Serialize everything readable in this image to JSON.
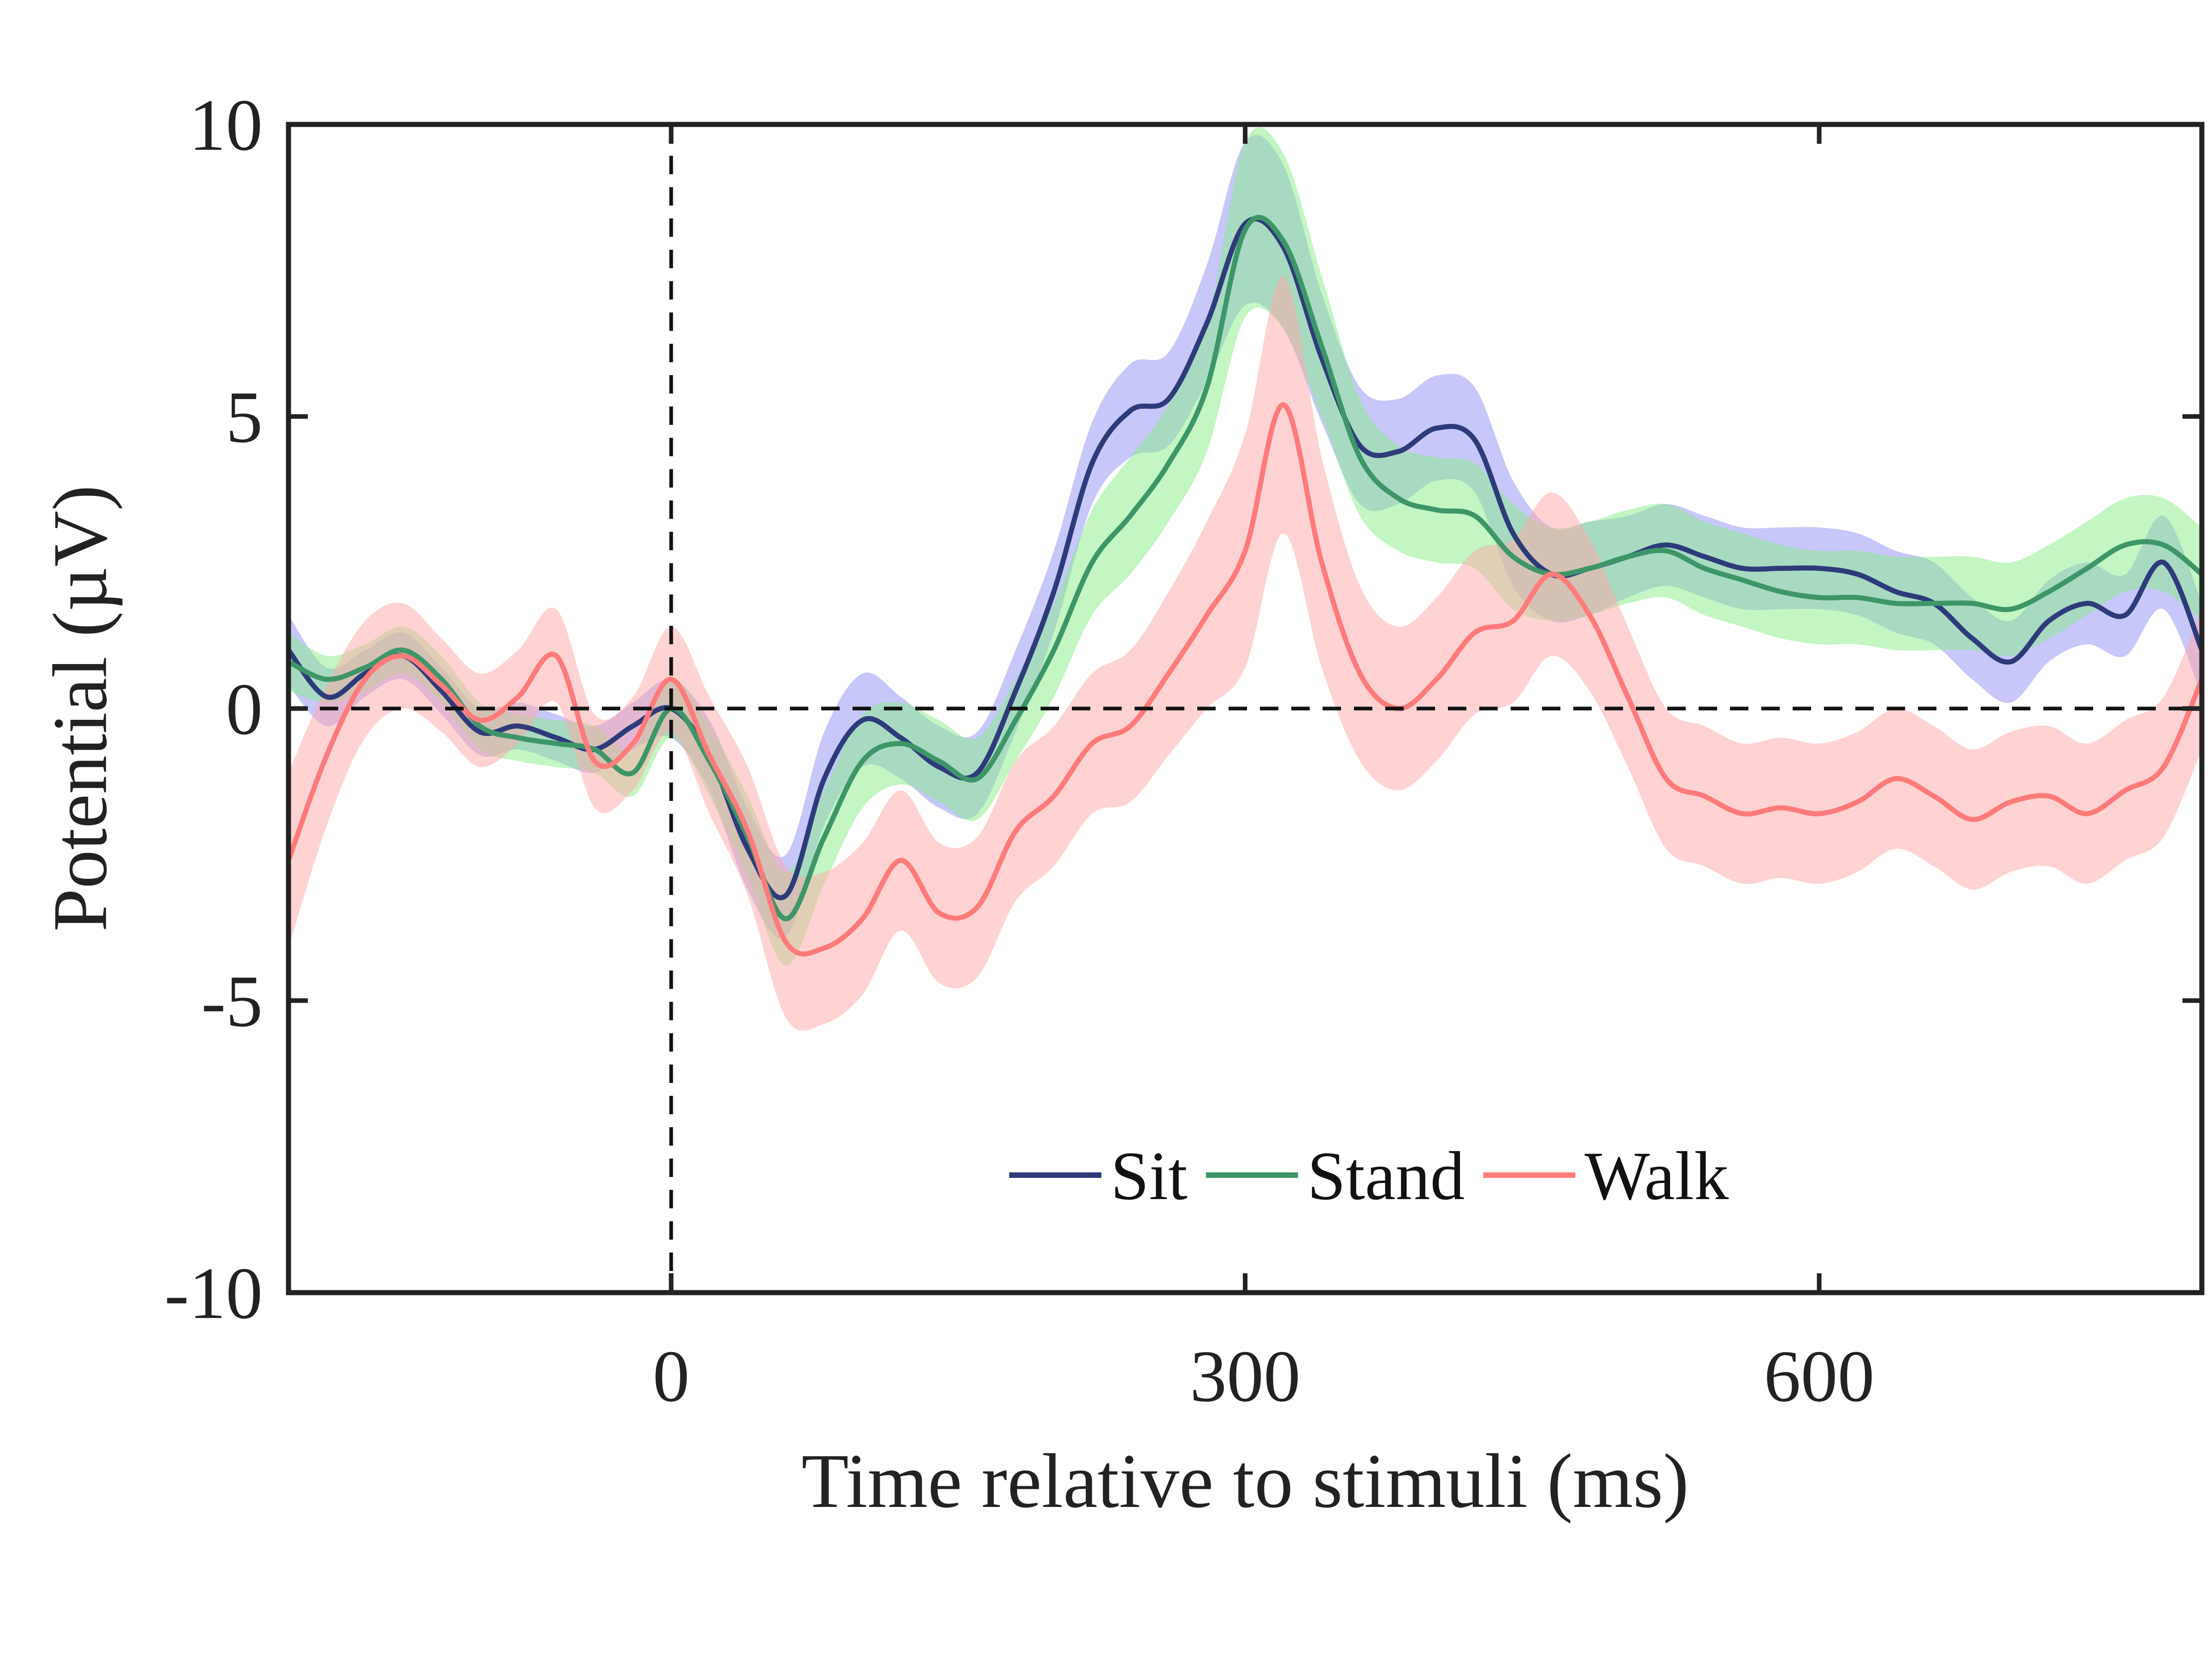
{
  "chart_data": {
    "type": "line",
    "xlabel": "Time relative to stimuli (ms)",
    "ylabel": "Potential (µV)",
    "xlim": [
      -200,
      800
    ],
    "ylim": [
      -10,
      10
    ],
    "xticks": [
      0,
      300,
      600
    ],
    "yticks": [
      -10,
      -5,
      0,
      5,
      10
    ],
    "reference_lines": {
      "x": 0,
      "y": 0
    },
    "legend_position": "bottom-right",
    "grid": false,
    "x": [
      -200,
      -180,
      -160,
      -140,
      -120,
      -100,
      -80,
      -60,
      -40,
      -20,
      0,
      20,
      40,
      60,
      80,
      100,
      120,
      140,
      160,
      180,
      200,
      220,
      240,
      260,
      280,
      300,
      320,
      340,
      360,
      380,
      400,
      420,
      440,
      460,
      480,
      500,
      520,
      540,
      560,
      580,
      600,
      620,
      640,
      660,
      680,
      700,
      720,
      740,
      760,
      780,
      800
    ],
    "series": [
      {
        "name": "Sit",
        "color": "#2e3b7a",
        "band_color": "#8f8ff5",
        "values": [
          1.0,
          0.2,
          0.6,
          0.9,
          0.3,
          -0.4,
          -0.3,
          -0.5,
          -0.7,
          -0.3,
          0.0,
          -0.8,
          -2.4,
          -3.2,
          -1.2,
          -0.2,
          -0.5,
          -1.0,
          -1.1,
          0.3,
          2.0,
          4.2,
          5.1,
          5.3,
          6.6,
          8.3,
          7.9,
          6.0,
          4.5,
          4.4,
          4.8,
          4.6,
          3.0,
          2.3,
          2.4,
          2.6,
          2.8,
          2.6,
          2.4,
          2.4,
          2.4,
          2.3,
          2.0,
          1.8,
          1.2,
          0.8,
          1.5,
          1.8,
          1.6,
          2.5,
          1.0
        ],
        "band": [
          0.6,
          0.5,
          0.4,
          0.4,
          0.4,
          0.4,
          0.4,
          0.4,
          0.4,
          0.4,
          0.5,
          0.6,
          0.7,
          0.7,
          0.8,
          0.8,
          0.7,
          0.7,
          0.7,
          0.7,
          0.7,
          0.7,
          0.8,
          0.8,
          1.0,
          1.4,
          1.4,
          1.1,
          1.0,
          0.9,
          0.9,
          0.9,
          0.9,
          0.8,
          0.8,
          0.7,
          0.7,
          0.7,
          0.7,
          0.7,
          0.7,
          0.7,
          0.7,
          0.7,
          0.7,
          0.7,
          0.7,
          0.7,
          0.7,
          0.8,
          0.8
        ]
      },
      {
        "name": "Stand",
        "color": "#3e9668",
        "band_color": "#88ee88",
        "values": [
          0.8,
          0.5,
          0.7,
          1.0,
          0.5,
          -0.3,
          -0.5,
          -0.6,
          -0.7,
          -1.1,
          0.0,
          -0.9,
          -2.2,
          -3.6,
          -2.2,
          -0.9,
          -0.6,
          -0.9,
          -1.2,
          -0.2,
          1.0,
          2.5,
          3.3,
          4.2,
          5.5,
          8.2,
          8.0,
          6.2,
          4.3,
          3.6,
          3.4,
          3.3,
          2.6,
          2.3,
          2.4,
          2.6,
          2.7,
          2.4,
          2.2,
          2.0,
          1.9,
          1.9,
          1.8,
          1.8,
          1.8,
          1.7,
          2.0,
          2.4,
          2.8,
          2.8,
          2.3
        ],
        "band": [
          0.5,
          0.4,
          0.4,
          0.4,
          0.4,
          0.4,
          0.4,
          0.4,
          0.4,
          0.4,
          0.5,
          0.6,
          0.7,
          0.8,
          0.8,
          0.8,
          0.7,
          0.7,
          0.7,
          0.7,
          0.8,
          0.9,
          1.0,
          1.0,
          1.1,
          1.5,
          1.5,
          1.2,
          1.0,
          0.9,
          0.9,
          0.9,
          0.9,
          0.8,
          0.8,
          0.8,
          0.8,
          0.8,
          0.8,
          0.8,
          0.8,
          0.8,
          0.8,
          0.8,
          0.8,
          0.8,
          0.8,
          0.8,
          0.8,
          0.8,
          0.8
        ]
      },
      {
        "name": "Walk",
        "color": "#ff7b7b",
        "band_color": "#ffa8a8",
        "values": [
          -2.6,
          -0.8,
          0.5,
          0.9,
          0.4,
          -0.2,
          0.2,
          0.9,
          -0.9,
          -0.6,
          0.5,
          -0.8,
          -2.1,
          -4.0,
          -4.1,
          -3.6,
          -2.6,
          -3.5,
          -3.4,
          -2.1,
          -1.5,
          -0.6,
          -0.3,
          0.6,
          1.6,
          2.7,
          5.2,
          2.5,
          0.6,
          0.0,
          0.5,
          1.3,
          1.5,
          2.3,
          1.6,
          0.2,
          -1.2,
          -1.5,
          -1.8,
          -1.7,
          -1.8,
          -1.6,
          -1.2,
          -1.5,
          -1.9,
          -1.6,
          -1.5,
          -1.8,
          -1.4,
          -1.0,
          0.5
        ],
        "band": [
          1.5,
          1.2,
          1.0,
          0.9,
          0.8,
          0.8,
          0.8,
          0.8,
          0.8,
          0.8,
          0.9,
          1.0,
          1.1,
          1.3,
          1.3,
          1.3,
          1.2,
          1.2,
          1.2,
          1.2,
          1.2,
          1.2,
          1.3,
          1.4,
          1.6,
          2.0,
          2.2,
          1.8,
          1.5,
          1.4,
          1.4,
          1.4,
          1.4,
          1.4,
          1.3,
          1.2,
          1.2,
          1.2,
          1.2,
          1.2,
          1.2,
          1.2,
          1.2,
          1.2,
          1.2,
          1.2,
          1.2,
          1.2,
          1.2,
          1.2,
          1.2
        ]
      }
    ]
  }
}
